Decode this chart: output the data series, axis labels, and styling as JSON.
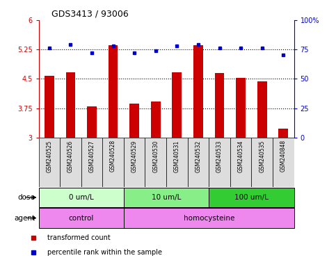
{
  "title": "GDS3413 / 93006",
  "samples": [
    "GSM240525",
    "GSM240526",
    "GSM240527",
    "GSM240528",
    "GSM240529",
    "GSM240530",
    "GSM240531",
    "GSM240532",
    "GSM240533",
    "GSM240534",
    "GSM240535",
    "GSM240848"
  ],
  "bar_values": [
    4.57,
    4.67,
    3.8,
    5.35,
    3.87,
    3.92,
    4.67,
    5.35,
    4.65,
    4.52,
    4.43,
    3.22
  ],
  "dot_values": [
    76,
    79,
    72,
    78,
    72,
    74,
    78,
    79,
    76,
    76,
    76,
    70
  ],
  "bar_color": "#cc0000",
  "dot_color": "#0000cc",
  "ylim_left": [
    3.0,
    6.0
  ],
  "ylim_right": [
    0,
    100
  ],
  "yticks_left": [
    3.0,
    3.75,
    4.5,
    5.25,
    6.0
  ],
  "yticks_left_labels": [
    "3",
    "3.75",
    "4.5",
    "5.25",
    "6"
  ],
  "yticks_right": [
    0,
    25,
    50,
    75,
    100
  ],
  "yticks_right_labels": [
    "0",
    "25",
    "50",
    "75",
    "100%"
  ],
  "hlines": [
    3.75,
    4.5,
    5.25
  ],
  "dose_groups": [
    {
      "label": "0 um/L",
      "start": 0,
      "end": 4,
      "color": "#ccffcc"
    },
    {
      "label": "10 um/L",
      "start": 4,
      "end": 8,
      "color": "#88ee88"
    },
    {
      "label": "100 um/L",
      "start": 8,
      "end": 12,
      "color": "#33cc33"
    }
  ],
  "agent_groups": [
    {
      "label": "control",
      "start": 0,
      "end": 4,
      "color": "#ee88ee"
    },
    {
      "label": "homocysteine",
      "start": 4,
      "end": 12,
      "color": "#ee88ee"
    }
  ],
  "dose_label": "dose",
  "agent_label": "agent",
  "legend_bar": "transformed count",
  "legend_dot": "percentile rank within the sample",
  "bg_color": "#ffffff",
  "plot_bg": "#ffffff",
  "sample_bg": "#dddddd",
  "group_div_color": "#000000"
}
